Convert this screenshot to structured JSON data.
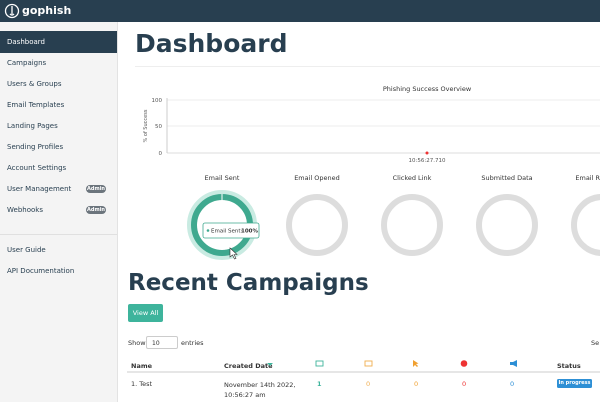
{
  "navbar": {
    "brand": "gophish"
  },
  "sidebar": {
    "items": [
      {
        "label": "Dashboard",
        "active": true
      },
      {
        "label": "Campaigns"
      },
      {
        "label": "Users & Groups"
      },
      {
        "label": "Email Templates"
      },
      {
        "label": "Landing Pages"
      },
      {
        "label": "Sending Profiles"
      },
      {
        "label": "Account Settings"
      },
      {
        "label": "User Management",
        "badge": "Admin"
      },
      {
        "label": "Webhooks",
        "badge": "Admin"
      }
    ],
    "footer_items": [
      "User Guide",
      "API Documentation"
    ]
  },
  "page": {
    "title": "Dashboard"
  },
  "overview": {
    "title": "Phishing Success Overview",
    "y_label": "% of Success",
    "y_ticks": [
      "100",
      "50",
      "0"
    ],
    "x_label": "10:56:27.710"
  },
  "stats": {
    "labels": [
      "Email Sent",
      "Email Opened",
      "Clicked Link",
      "Submitted Data",
      "Email R"
    ],
    "tooltip": {
      "label": "Email Sent:",
      "value": "100%"
    }
  },
  "campaigns": {
    "title": "Recent Campaigns",
    "button": "View All",
    "show": "Show",
    "entries_value": "10",
    "entries": "entries",
    "search": "Se",
    "columns": [
      "Name",
      "Created Date",
      "Status"
    ],
    "rows": [
      {
        "name": "1. Test",
        "date": "November 14th 2022, 10:56:27 am",
        "counts": [
          "1",
          "0",
          "0",
          "0",
          "0"
        ],
        "status": "In progress"
      }
    ]
  }
}
